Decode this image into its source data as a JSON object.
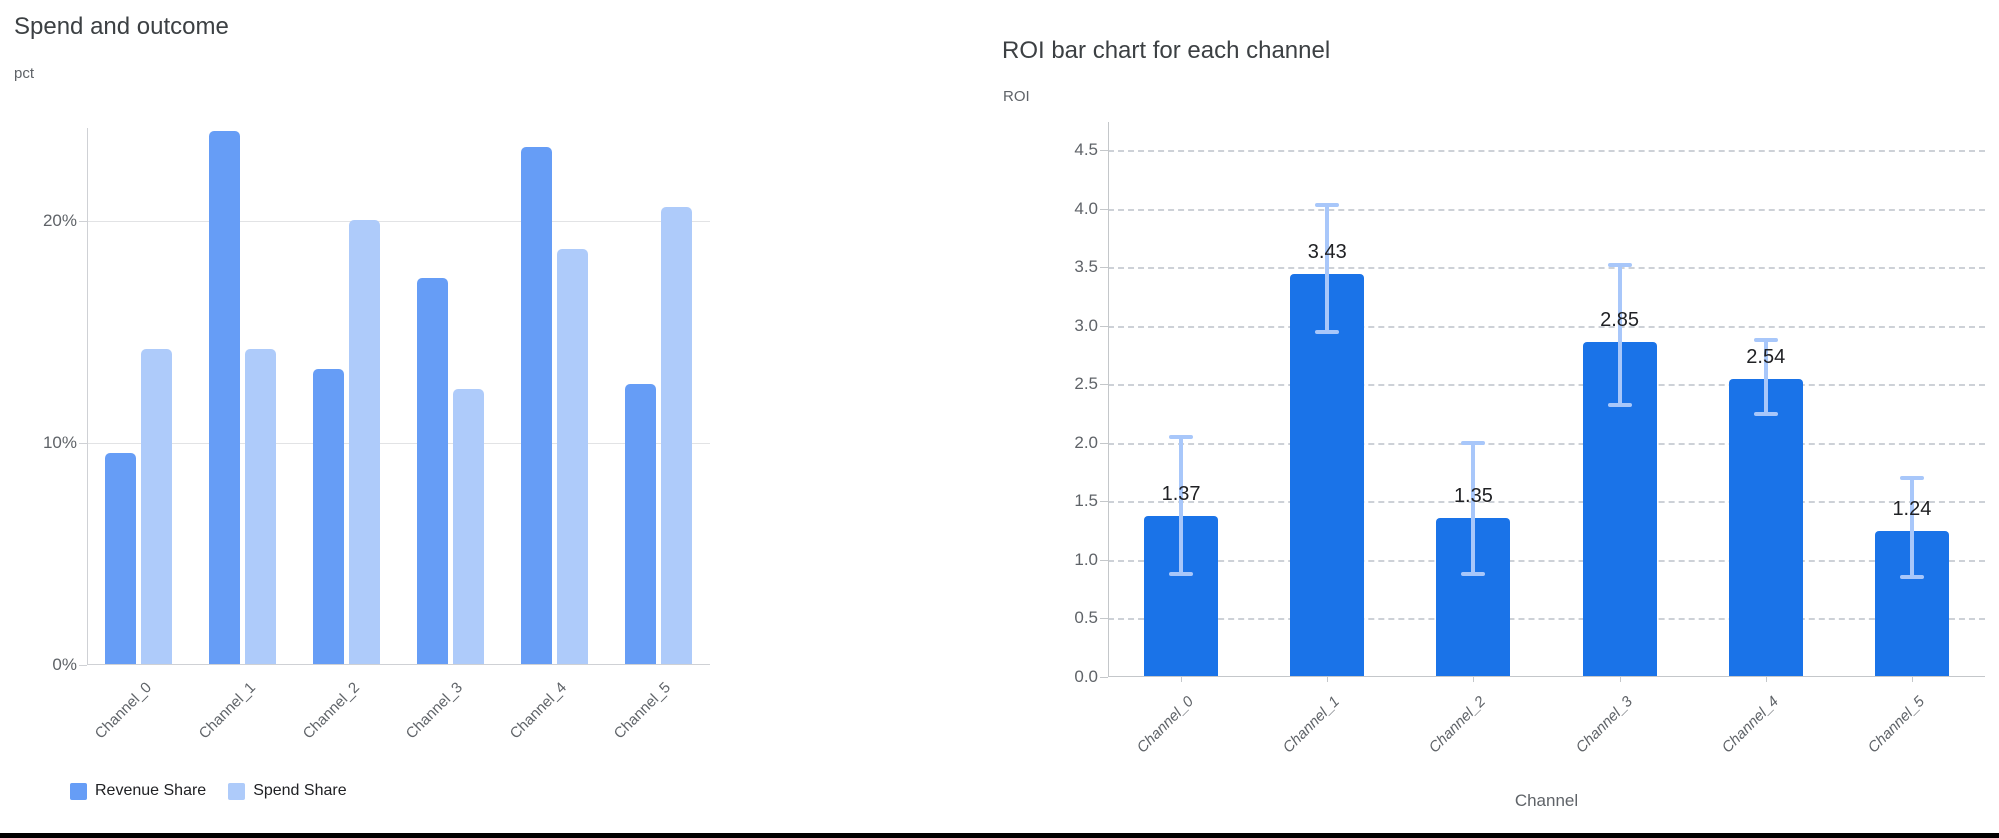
{
  "page": {
    "background": "#ffffff",
    "bottom_edge_color": "#000000"
  },
  "chart_data": [
    {
      "type": "bar",
      "title": "Spend and outcome",
      "ylabel": "pct",
      "xlabel": "",
      "categories": [
        "Channel_0",
        "Channel_1",
        "Channel_2",
        "Channel_3",
        "Channel_4",
        "Channel_5"
      ],
      "series": [
        {
          "name": "Revenue Share",
          "color": "#669df6",
          "values": [
            9.5,
            24.0,
            13.3,
            17.4,
            23.3,
            12.6
          ]
        },
        {
          "name": "Spend Share",
          "color": "#aecbfa",
          "values": [
            14.2,
            14.2,
            20.0,
            12.4,
            18.7,
            20.6
          ]
        }
      ],
      "y_ticks": [
        {
          "value": 0,
          "label": "0%"
        },
        {
          "value": 10,
          "label": "10%"
        },
        {
          "value": 20,
          "label": "20%"
        }
      ],
      "ylim": [
        0,
        24.2
      ],
      "grid": "solid",
      "legend_position": "bottom"
    },
    {
      "type": "bar",
      "title": "ROI bar chart for each channel",
      "ylabel": "ROI",
      "xlabel": "Channel",
      "categories": [
        "Channel_0",
        "Channel_1",
        "Channel_2",
        "Channel_3",
        "Channel_4",
        "Channel_5"
      ],
      "values": [
        1.37,
        3.43,
        1.35,
        2.85,
        2.54,
        1.24
      ],
      "bar_labels": [
        "1.37",
        "3.43",
        "1.35",
        "2.85",
        "2.54",
        "1.24"
      ],
      "error_low": [
        0.88,
        2.95,
        0.88,
        2.32,
        2.25,
        0.85
      ],
      "error_high": [
        2.05,
        4.03,
        2.0,
        3.52,
        2.88,
        1.7
      ],
      "bar_color": "#1a73e8",
      "error_color": "#a8c7fa",
      "y_ticks": [
        {
          "value": 0.0,
          "label": "0.0"
        },
        {
          "value": 0.5,
          "label": "0.5"
        },
        {
          "value": 1.0,
          "label": "1.0"
        },
        {
          "value": 1.5,
          "label": "1.5"
        },
        {
          "value": 2.0,
          "label": "2.0"
        },
        {
          "value": 2.5,
          "label": "2.5"
        },
        {
          "value": 3.0,
          "label": "3.0"
        },
        {
          "value": 3.5,
          "label": "3.5"
        },
        {
          "value": 4.0,
          "label": "4.0"
        },
        {
          "value": 4.5,
          "label": "4.5"
        }
      ],
      "ylim": [
        0,
        4.74
      ],
      "grid": "dashed",
      "legend_position": "none"
    }
  ]
}
